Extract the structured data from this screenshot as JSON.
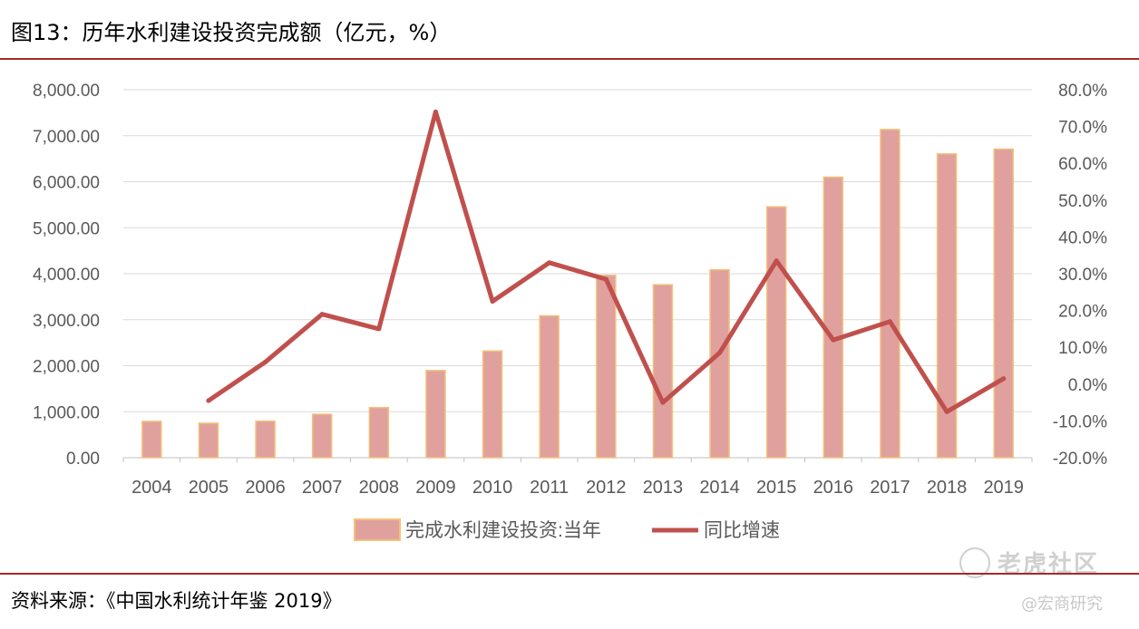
{
  "figure": {
    "title": "图13：历年水利建设投资完成额（亿元，%）",
    "source": "资料来源：《中国水利统计年鉴 2019》",
    "watermark": "老虎社区",
    "credit": "@宏商研究"
  },
  "chart_data": {
    "type": "bar+line",
    "categories": [
      "2004",
      "2005",
      "2006",
      "2007",
      "2008",
      "2009",
      "2010",
      "2011",
      "2012",
      "2013",
      "2014",
      "2015",
      "2016",
      "2017",
      "2018",
      "2019"
    ],
    "series": [
      {
        "name": "完成水利建设投资:当年",
        "kind": "bar",
        "axis": "left",
        "color": "#e0a09e",
        "edge_color": "#f2c27a",
        "values": [
          790,
          750,
          795,
          945,
          1090,
          1895,
          2320,
          3085,
          3965,
          3760,
          4085,
          5455,
          6100,
          7135,
          6605,
          6710
        ]
      },
      {
        "name": "同比增速",
        "kind": "line",
        "axis": "right",
        "color": "#c0504d",
        "values": [
          null,
          -4.5,
          6.0,
          19.0,
          15.0,
          74.0,
          22.5,
          33.0,
          28.5,
          -5.0,
          8.5,
          33.5,
          12.0,
          17.0,
          -7.5,
          1.5
        ]
      }
    ],
    "y_left": {
      "min": 0,
      "max": 8000,
      "ticks": [
        "0.00",
        "1,000.00",
        "2,000.00",
        "3,000.00",
        "4,000.00",
        "5,000.00",
        "6,000.00",
        "7,000.00",
        "8,000.00"
      ]
    },
    "y_right": {
      "min": -20,
      "max": 80,
      "ticks": [
        "-20.0%",
        "-10.0%",
        "0.0%",
        "10.0%",
        "20.0%",
        "30.0%",
        "40.0%",
        "50.0%",
        "60.0%",
        "70.0%",
        "80.0%"
      ]
    },
    "grid": true,
    "legend_position": "bottom"
  }
}
